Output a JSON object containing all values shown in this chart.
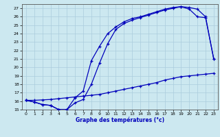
{
  "xlabel": "Graphe des températures (°c)",
  "bg_color": "#cce8f0",
  "grid_color": "#aaccdd",
  "line_color": "#0000bb",
  "xlim": [
    -0.5,
    23.5
  ],
  "ylim": [
    15,
    27.5
  ],
  "xticks": [
    0,
    1,
    2,
    3,
    4,
    5,
    6,
    7,
    8,
    9,
    10,
    11,
    12,
    13,
    14,
    15,
    16,
    17,
    18,
    19,
    20,
    21,
    22,
    23
  ],
  "yticks": [
    15,
    16,
    17,
    18,
    19,
    20,
    21,
    22,
    23,
    24,
    25,
    26,
    27
  ],
  "line1_x": [
    0,
    1,
    2,
    3,
    4,
    5,
    6,
    7,
    8,
    9,
    10,
    11,
    12,
    13,
    14,
    15,
    16,
    17,
    18,
    19,
    20,
    21,
    22,
    23
  ],
  "line1_y": [
    16.1,
    15.9,
    15.6,
    15.5,
    15.0,
    15.0,
    16.4,
    17.2,
    20.8,
    22.5,
    24.0,
    24.8,
    25.4,
    25.8,
    26.0,
    26.3,
    26.6,
    26.9,
    27.1,
    27.2,
    27.1,
    26.9,
    26.0,
    21.0
  ],
  "line2_x": [
    0,
    1,
    2,
    3,
    4,
    5,
    6,
    7,
    8,
    9,
    10,
    11,
    12,
    13,
    14,
    15,
    16,
    17,
    18,
    19,
    20,
    21,
    22,
    23
  ],
  "line2_y": [
    16.1,
    15.9,
    15.6,
    15.5,
    15.0,
    15.0,
    15.8,
    16.2,
    18.0,
    20.5,
    22.8,
    24.5,
    25.2,
    25.6,
    25.9,
    26.2,
    26.5,
    26.8,
    27.0,
    27.2,
    26.9,
    26.0,
    25.9,
    21.0
  ],
  "line3_x": [
    0,
    1,
    2,
    3,
    4,
    5,
    6,
    7,
    8,
    9,
    10,
    11,
    12,
    13,
    14,
    15,
    16,
    17,
    18,
    19,
    20,
    21,
    22,
    23
  ],
  "line3_y": [
    16.1,
    16.1,
    16.15,
    16.2,
    16.3,
    16.4,
    16.5,
    16.6,
    16.7,
    16.8,
    17.0,
    17.2,
    17.4,
    17.6,
    17.8,
    18.0,
    18.2,
    18.5,
    18.7,
    18.9,
    19.0,
    19.1,
    19.2,
    19.3
  ]
}
